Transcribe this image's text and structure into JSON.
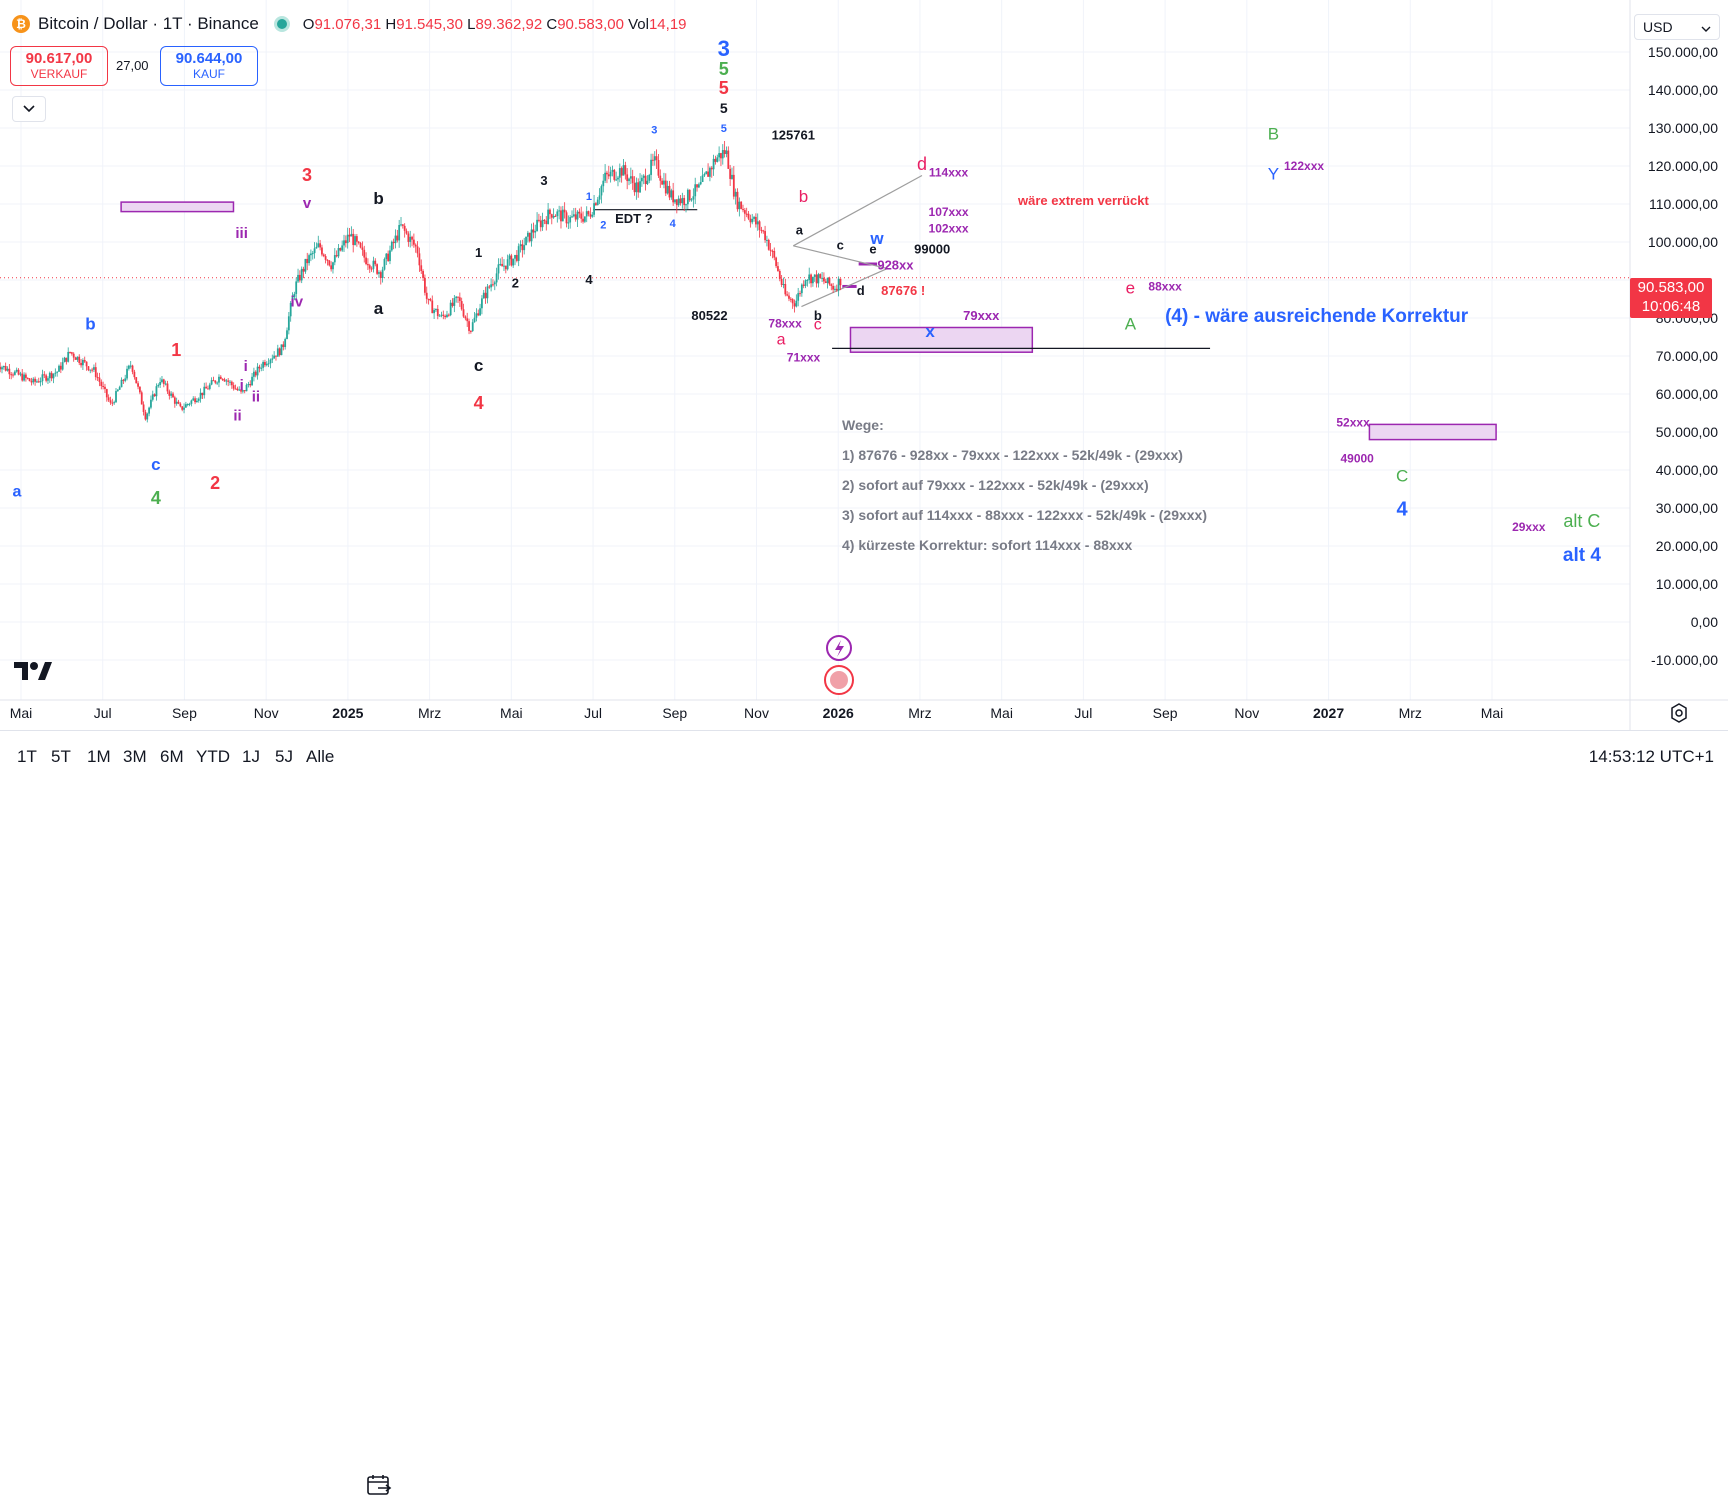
{
  "header": {
    "symbol_icon": "bitcoin-icon",
    "title": "Bitcoin / Dollar · 1T · Binance",
    "market_status": "market-open-dot",
    "ohlc": {
      "o_label": "O",
      "o_value": "91.076,31",
      "h_label": "H",
      "h_value": "91.545,30",
      "l_label": "L",
      "l_value": "89.362,92",
      "c_label": "C",
      "c_value": "90.583,00",
      "vol_label": "Vol",
      "vol_value": "14,19"
    }
  },
  "trade": {
    "sell_price": "90.617,00",
    "sell_label": "VERKAUF",
    "spread": "27,00",
    "buy_price": "90.644,00",
    "buy_label": "KAUF"
  },
  "currency": "USD",
  "current_price": {
    "value": "90.583,00",
    "countdown": "10:06:48"
  },
  "bottombar": {
    "ranges": [
      "1T",
      "5T",
      "1M",
      "3M",
      "6M",
      "YTD",
      "1J",
      "5J",
      "Alle"
    ],
    "time": "14:53:12 UTC+1"
  },
  "colors": {
    "up": "#26a69a",
    "down": "#f23645",
    "red": "#f23645",
    "blue": "#2962ff",
    "green": "#4caf50",
    "purple": "#9c27b0",
    "pink": "#e91e63",
    "black": "#131722",
    "zone_fill": "#ecd6f2",
    "zone_stroke": "#9c27b0"
  },
  "chart_data": {
    "type": "candlestick",
    "ylim": [
      -13000,
      155000
    ],
    "y_ticks": [
      {
        "v": 150000,
        "label": "150.000,00"
      },
      {
        "v": 140000,
        "label": "140.000,00"
      },
      {
        "v": 130000,
        "label": "130.000,00"
      },
      {
        "v": 120000,
        "label": "120.000,00"
      },
      {
        "v": 110000,
        "label": "110.000,00"
      },
      {
        "v": 100000,
        "label": "100.000,00"
      },
      {
        "v": 80000,
        "label": "80.000,00"
      },
      {
        "v": 70000,
        "label": "70.000,00"
      },
      {
        "v": 60000,
        "label": "60.000,00"
      },
      {
        "v": 50000,
        "label": "50.000,00"
      },
      {
        "v": 40000,
        "label": "40.000,00"
      },
      {
        "v": 30000,
        "label": "30.000,00"
      },
      {
        "v": 20000,
        "label": "20.000,00"
      },
      {
        "v": 10000,
        "label": "10.000,00"
      },
      {
        "v": 0,
        "label": "0,00"
      },
      {
        "v": -10000,
        "label": "-10.000,00"
      }
    ],
    "x_ticks": [
      {
        "m": 0,
        "label": "Mai"
      },
      {
        "m": 2,
        "label": "Jul"
      },
      {
        "m": 4,
        "label": "Sep"
      },
      {
        "m": 6,
        "label": "Nov"
      },
      {
        "m": 8,
        "label": "2025",
        "bold": true
      },
      {
        "m": 10,
        "label": "Mrz"
      },
      {
        "m": 12,
        "label": "Mai"
      },
      {
        "m": 14,
        "label": "Jul"
      },
      {
        "m": 16,
        "label": "Sep"
      },
      {
        "m": 18,
        "label": "Nov"
      },
      {
        "m": 20,
        "label": "2026",
        "bold": true
      },
      {
        "m": 22,
        "label": "Mrz"
      },
      {
        "m": 24,
        "label": "Mai"
      },
      {
        "m": 26,
        "label": "Jul"
      },
      {
        "m": 28,
        "label": "Sep"
      },
      {
        "m": 30,
        "label": "Nov"
      },
      {
        "m": 32,
        "label": "2027",
        "bold": true
      },
      {
        "m": 34,
        "label": "Mrz"
      },
      {
        "m": 36,
        "label": "Mai"
      }
    ],
    "price_path": [
      [
        -0.6,
        68000
      ],
      [
        0.3,
        63000
      ],
      [
        0.9,
        66000
      ],
      [
        1.2,
        71000
      ],
      [
        1.8,
        66000
      ],
      [
        2.2,
        57000
      ],
      [
        2.7,
        68000
      ],
      [
        3.05,
        54000
      ],
      [
        3.4,
        64000
      ],
      [
        3.9,
        56000
      ],
      [
        4.4,
        60000
      ],
      [
        4.9,
        65000
      ],
      [
        5.4,
        60000
      ],
      [
        5.9,
        68000
      ],
      [
        6.4,
        72000
      ],
      [
        6.7,
        88000
      ],
      [
        7.0,
        95000
      ],
      [
        7.3,
        99000
      ],
      [
        7.6,
        94000
      ],
      [
        8.05,
        102000
      ],
      [
        8.4,
        96000
      ],
      [
        8.8,
        92000
      ],
      [
        9.3,
        104000
      ],
      [
        9.7,
        98000
      ],
      [
        9.95,
        84000
      ],
      [
        10.3,
        80000
      ],
      [
        10.7,
        85000
      ],
      [
        11.0,
        77000
      ],
      [
        11.3,
        85000
      ],
      [
        11.7,
        93000
      ],
      [
        12.1,
        96000
      ],
      [
        12.6,
        104000
      ],
      [
        13.0,
        108000
      ],
      [
        13.4,
        106000
      ],
      [
        13.9,
        107000
      ],
      [
        14.3,
        117000
      ],
      [
        14.7,
        119000
      ],
      [
        15.1,
        114000
      ],
      [
        15.5,
        121000
      ],
      [
        15.9,
        112000
      ],
      [
        16.2,
        111000
      ],
      [
        16.6,
        114000
      ],
      [
        17.0,
        122000
      ],
      [
        17.25,
        124000
      ],
      [
        17.5,
        111000
      ],
      [
        17.9,
        106000
      ],
      [
        18.2,
        102000
      ],
      [
        18.45,
        95000
      ],
      [
        18.7,
        86000
      ],
      [
        18.95,
        84000
      ],
      [
        19.2,
        91000
      ],
      [
        19.6,
        90000
      ],
      [
        19.9,
        88000
      ],
      [
        20.1,
        90600
      ]
    ],
    "lines": [
      {
        "m1": 18.9,
        "p1": 99000,
        "m2": 22.05,
        "p2": 117500,
        "color": "#9e9e9e"
      },
      {
        "m1": 18.9,
        "p1": 99000,
        "m2": 21.2,
        "p2": 93000,
        "color": "#9e9e9e"
      },
      {
        "m1": 19.1,
        "p1": 83000,
        "m2": 21.2,
        "p2": 93000,
        "color": "#9e9e9e"
      },
      {
        "m1": 14.0,
        "p1": 108500,
        "m2": 16.55,
        "p2": 108500,
        "color": "#131722"
      },
      {
        "m1": 19.85,
        "p1": 72000,
        "m2": 29.1,
        "p2": 72000,
        "color": "#131722"
      }
    ],
    "zones": [
      {
        "m1": 2.45,
        "m2": 5.2,
        "p1": 110500,
        "p2": 108000
      },
      {
        "m1": 20.3,
        "m2": 24.75,
        "p1": 77500,
        "p2": 71000
      },
      {
        "m1": 33.0,
        "m2": 36.1,
        "p1": 52000,
        "p2": 48000
      }
    ],
    "small_bars": [
      {
        "m1": 20.5,
        "m2": 20.95,
        "p": 94200
      },
      {
        "m1": 20.1,
        "m2": 20.45,
        "p": 88300
      }
    ],
    "labels": [
      {
        "t": "a",
        "m": -0.1,
        "p": 33000,
        "c": "blue",
        "s": 16,
        "b": true
      },
      {
        "t": "b",
        "m": 1.7,
        "p": 77000,
        "c": "blue",
        "s": 17,
        "b": true
      },
      {
        "t": "c",
        "m": 3.3,
        "p": 40000,
        "c": "blue",
        "s": 17,
        "b": true
      },
      {
        "t": "4",
        "m": 3.3,
        "p": 31000,
        "c": "green",
        "s": 18,
        "b": true
      },
      {
        "t": "1",
        "m": 3.8,
        "p": 70000,
        "c": "red",
        "s": 18,
        "b": true
      },
      {
        "t": "2",
        "m": 4.75,
        "p": 35000,
        "c": "red",
        "s": 18,
        "b": true
      },
      {
        "t": "i",
        "m": 5.5,
        "p": 66000,
        "c": "purple",
        "s": 15,
        "b": true
      },
      {
        "t": "i",
        "m": 5.4,
        "p": 61000,
        "c": "purple",
        "s": 15,
        "b": true
      },
      {
        "t": "ii",
        "m": 5.75,
        "p": 58000,
        "c": "purple",
        "s": 15,
        "b": true
      },
      {
        "t": "ii",
        "m": 5.3,
        "p": 53000,
        "c": "purple",
        "s": 15,
        "b": true
      },
      {
        "t": "iii",
        "m": 5.4,
        "p": 101000,
        "c": "purple",
        "s": 15,
        "b": true
      },
      {
        "t": "iv",
        "m": 6.75,
        "p": 83000,
        "c": "purple",
        "s": 15,
        "b": true
      },
      {
        "t": "v",
        "m": 7.0,
        "p": 109000,
        "c": "purple",
        "s": 15,
        "b": true
      },
      {
        "t": "3",
        "m": 7.0,
        "p": 116000,
        "c": "red",
        "s": 18,
        "b": true
      },
      {
        "t": "b",
        "m": 8.75,
        "p": 110000,
        "c": "black",
        "s": 17,
        "b": true
      },
      {
        "t": "a",
        "m": 8.75,
        "p": 81000,
        "c": "black",
        "s": 17,
        "b": true
      },
      {
        "t": "c",
        "m": 11.2,
        "p": 66000,
        "c": "black",
        "s": 17,
        "b": true
      },
      {
        "t": "4",
        "m": 11.2,
        "p": 56000,
        "c": "red",
        "s": 18,
        "b": true
      },
      {
        "t": "1",
        "m": 11.2,
        "p": 96000,
        "c": "black",
        "s": 13,
        "b": true
      },
      {
        "t": "2",
        "m": 12.1,
        "p": 88000,
        "c": "black",
        "s": 13,
        "b": true
      },
      {
        "t": "3",
        "m": 12.8,
        "p": 115000,
        "c": "black",
        "s": 13,
        "b": true
      },
      {
        "t": "4",
        "m": 13.9,
        "p": 89000,
        "c": "black",
        "s": 13,
        "b": true
      },
      {
        "t": "1",
        "m": 13.9,
        "p": 111000,
        "c": "blue",
        "s": 11,
        "b": true
      },
      {
        "t": "2",
        "m": 14.25,
        "p": 103500,
        "c": "blue",
        "s": 11,
        "b": true
      },
      {
        "t": "4",
        "m": 15.95,
        "p": 104000,
        "c": "blue",
        "s": 11,
        "b": true
      },
      {
        "t": "3",
        "m": 15.5,
        "p": 128500,
        "c": "blue",
        "s": 11,
        "b": true
      },
      {
        "t": "5",
        "m": 17.2,
        "p": 129000,
        "c": "blue",
        "s": 11,
        "b": true
      },
      {
        "t": "5",
        "m": 17.2,
        "p": 134000,
        "c": "black",
        "s": 14,
        "b": true
      },
      {
        "t": "5",
        "m": 17.2,
        "p": 139000,
        "c": "red",
        "s": 18,
        "b": true
      },
      {
        "t": "5",
        "m": 17.2,
        "p": 144000,
        "c": "green",
        "s": 18,
        "b": true
      },
      {
        "t": "3",
        "m": 17.2,
        "p": 149000,
        "c": "blue",
        "s": 22,
        "b": true
      },
      {
        "t": "EDT ?",
        "m": 15.0,
        "p": 105000,
        "c": "black",
        "s": 13,
        "b": true
      },
      {
        "t": "125761",
        "m": 18.9,
        "p": 127000,
        "c": "black",
        "s": 13,
        "b": true
      },
      {
        "t": "80522",
        "m": 16.85,
        "p": 79500,
        "c": "black",
        "s": 13,
        "b": true
      },
      {
        "t": "b",
        "m": 19.15,
        "p": 110500,
        "c": "pink",
        "s": 17,
        "b": false
      },
      {
        "t": "a",
        "m": 19.05,
        "p": 102000,
        "c": "black",
        "s": 13,
        "b": true
      },
      {
        "t": "c",
        "m": 20.05,
        "p": 98000,
        "c": "black",
        "s": 13,
        "b": true
      },
      {
        "t": "e",
        "m": 20.85,
        "p": 97000,
        "c": "black",
        "s": 13,
        "b": true
      },
      {
        "t": "w",
        "m": 20.95,
        "p": 99500,
        "c": "blue",
        "s": 17,
        "b": true
      },
      {
        "t": "b",
        "m": 19.5,
        "p": 79500,
        "c": "black",
        "s": 13,
        "b": true
      },
      {
        "t": "d",
        "m": 20.55,
        "p": 86000,
        "c": "black",
        "s": 13,
        "b": true
      },
      {
        "t": "78xxx",
        "m": 18.7,
        "p": 77500,
        "c": "purple",
        "s": 12,
        "b": true
      },
      {
        "t": "a",
        "m": 18.6,
        "p": 73000,
        "c": "pink",
        "s": 16,
        "b": false
      },
      {
        "t": "c",
        "m": 19.5,
        "p": 77000,
        "c": "pink",
        "s": 16,
        "b": false
      },
      {
        "t": "71xxx",
        "m": 19.15,
        "p": 68500,
        "c": "purple",
        "s": 12,
        "b": true
      },
      {
        "t": "87676 !",
        "m": 21.05,
        "p": 86000,
        "c": "red",
        "s": 13,
        "b": true
      },
      {
        "t": "928xx",
        "m": 21.4,
        "p": 92700,
        "c": "purple",
        "s": 13,
        "b": true
      },
      {
        "t": "99000",
        "m": 22.3,
        "p": 97000,
        "c": "black",
        "s": 13,
        "b": true
      },
      {
        "t": "x",
        "m": 22.25,
        "p": 75000,
        "c": "blue",
        "s": 17,
        "b": true
      },
      {
        "t": "79xxx",
        "m": 23.5,
        "p": 79500,
        "c": "purple",
        "s": 13,
        "b": true
      },
      {
        "t": "d",
        "m": 22.05,
        "p": 119000,
        "c": "pink",
        "s": 18,
        "b": false
      },
      {
        "t": "114xxx",
        "m": 22.7,
        "p": 117300,
        "c": "purple",
        "s": 12,
        "b": true
      },
      {
        "t": "107xxx",
        "m": 22.7,
        "p": 106800,
        "c": "purple",
        "s": 12,
        "b": true
      },
      {
        "t": "102xxx",
        "m": 22.7,
        "p": 102500,
        "c": "purple",
        "s": 12,
        "b": true
      },
      {
        "t": "wäre extrem verrückt",
        "m": 24.4,
        "p": 109700,
        "c": "red",
        "s": 13,
        "b": true
      },
      {
        "t": "e",
        "m": 27.15,
        "p": 86500,
        "c": "pink",
        "s": 17,
        "b": false
      },
      {
        "t": "88xxx",
        "m": 28.0,
        "p": 87300,
        "c": "purple",
        "s": 12,
        "b": true
      },
      {
        "t": "A",
        "m": 27.15,
        "p": 77000,
        "c": "green",
        "s": 17,
        "b": false
      },
      {
        "t": "(4) - wäre ausreichende Korrektur",
        "m": 28.0,
        "p": 79000,
        "c": "blue",
        "s": 19,
        "b": true
      },
      {
        "t": "B",
        "m": 30.65,
        "p": 127000,
        "c": "green",
        "s": 17,
        "b": false
      },
      {
        "t": "Y",
        "m": 30.65,
        "p": 116500,
        "c": "blue",
        "s": 17,
        "b": false
      },
      {
        "t": "122xxx",
        "m": 31.4,
        "p": 119000,
        "c": "purple",
        "s": 12,
        "b": true
      },
      {
        "t": "52xxx",
        "m": 32.6,
        "p": 51500,
        "c": "purple",
        "s": 12,
        "b": true
      },
      {
        "t": "49000",
        "m": 32.7,
        "p": 42000,
        "c": "purple",
        "s": 12,
        "b": true
      },
      {
        "t": "C",
        "m": 33.8,
        "p": 37000,
        "c": "green",
        "s": 17,
        "b": false
      },
      {
        "t": "4",
        "m": 33.8,
        "p": 28000,
        "c": "blue",
        "s": 20,
        "b": true
      },
      {
        "t": "29xxx",
        "m": 36.9,
        "p": 24000,
        "c": "purple",
        "s": 12,
        "b": true
      },
      {
        "t": "alt C",
        "m": 38.2,
        "p": 25000,
        "c": "green",
        "s": 18,
        "b": false
      },
      {
        "t": "alt 4",
        "m": 38.2,
        "p": 16000,
        "c": "blue",
        "s": 19,
        "b": true
      }
    ],
    "notes": {
      "title": "Wege:",
      "lines": [
        "1)  87676 - 928xx - 79xxx - 122xxx - 52k/49k - (29xxx)",
        "2)  sofort auf 79xxx - 122xxx - 52k/49k - (29xxx)",
        "3)  sofort auf 114xxx - 88xxx - 122xxx - 52k/49k - (29xxx)",
        "4)  kürzeste Korrektur: sofort 114xxx - 88xxx"
      ]
    }
  }
}
